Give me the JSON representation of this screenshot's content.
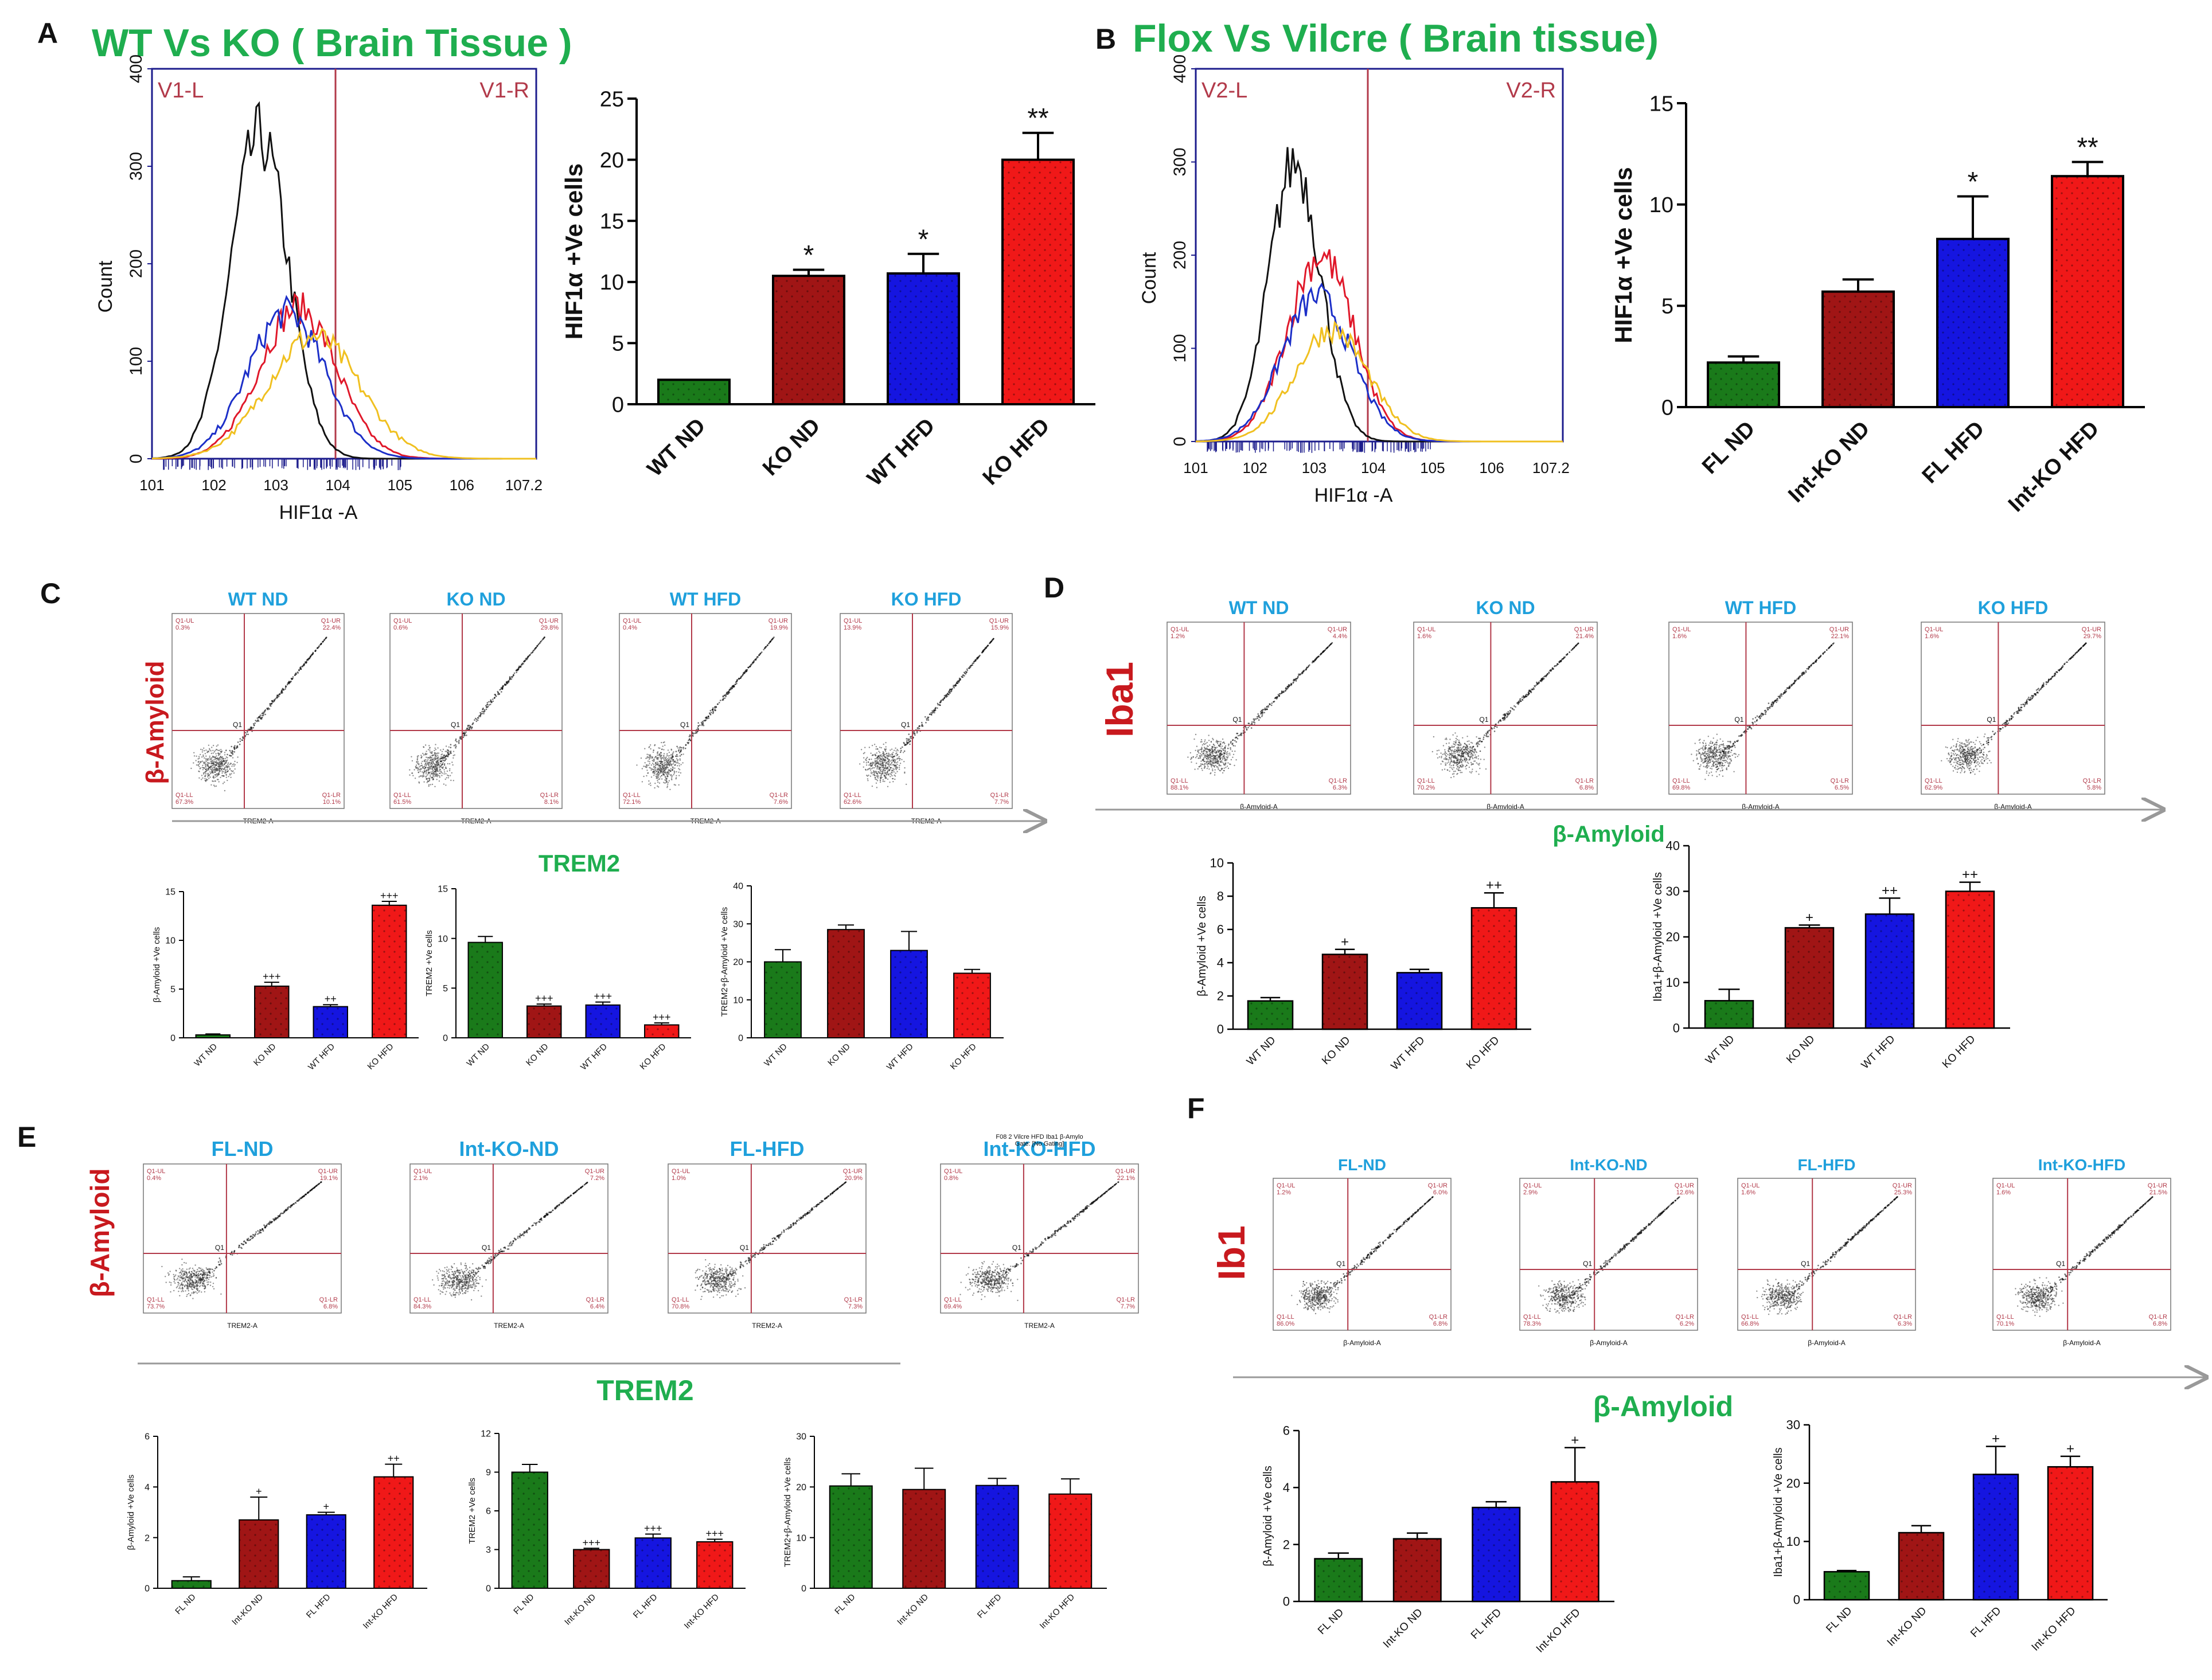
{
  "colors": {
    "green": "#1a7a1a",
    "darkred": "#a01515",
    "blue": "#1515e0",
    "red": "#f01818",
    "title_green": "#1fae4f",
    "label_red": "#c8191e",
    "flow_blue": "#1fa0dc",
    "text": "#111111",
    "axis_purple": "#1c1c8c",
    "flow_black": "#111111",
    "flow_red": "#e0182a",
    "flow_blue_line": "#1c2fc8",
    "flow_yellow": "#f0c020",
    "gate": "#b23a4a"
  },
  "panels": {
    "A": {
      "letter": "A",
      "title": "WT Vs KO ( Brain Tissue )",
      "histogram": {
        "gate_left": "V1-L",
        "gate_right": "V1-R",
        "xlabel": "HIF1α -A",
        "ylabel": "Count",
        "yticks": [
          "0",
          "100",
          "200",
          "300",
          "400"
        ],
        "xticks": [
          "10^1",
          "10^2",
          "10^3",
          "10^4",
          "10^5",
          "10^6",
          "10^7.2"
        ]
      }
    },
    "B": {
      "letter": "B",
      "title": "Flox Vs Vilcre ( Brain tissue)",
      "histogram": {
        "gate_left": "V2-L",
        "gate_right": "V2-R",
        "xlabel": "HIF1α -A",
        "ylabel": "Count",
        "yticks": [
          "0",
          "100",
          "200",
          "300",
          "400"
        ],
        "xticks": [
          "10^1",
          "10^2",
          "10^3",
          "10^4",
          "10^5",
          "10^6",
          "10^7.2"
        ]
      }
    },
    "C": {
      "letter": "C",
      "y_label": "β-Amyloid",
      "x_label": "TREM2",
      "dotplots": [
        {
          "title": "WT ND",
          "ul": "Q1-UL\n0.3%",
          "ur": "Q1-UR\n22.4%",
          "ll": "Q1-LL\n67.3%",
          "lr": "Q1-LR\n10.1%",
          "xaxis": "TREM2-A"
        },
        {
          "title": "KO ND",
          "ul": "Q1-UL\n0.6%",
          "ur": "Q1-UR\n29.8%",
          "ll": "Q1-LL\n61.5%",
          "lr": "Q1-LR\n8.1%",
          "xaxis": "TREM2-A"
        },
        {
          "title": "WT HFD",
          "ul": "Q1-UL\n0.4%",
          "ur": "Q1-UR\n19.9%",
          "ll": "Q1-LL\n72.1%",
          "lr": "Q1-LR\n7.6%",
          "xaxis": "TREM2-A"
        },
        {
          "title": "KO HFD",
          "ul": "Q1-UL\n13.9%",
          "ur": "Q1-UR\n15.9%",
          "ll": "Q1-LL\n62.6%",
          "lr": "Q1-LR\n7.7%",
          "xaxis": "TREM2-A"
        }
      ]
    },
    "D": {
      "letter": "D",
      "y_label": "Iba1",
      "x_label": "β-Amyloid",
      "dotplots": [
        {
          "title": "WT ND",
          "ul": "Q1-UL\n1.2%",
          "ur": "Q1-UR\n4.4%",
          "ll": "Q1-LL\n88.1%",
          "lr": "Q1-LR\n6.3%",
          "xaxis": "β-Amyloid-A"
        },
        {
          "title": "KO ND",
          "ul": "Q1-UL\n1.6%",
          "ur": "Q1-UR\n21.4%",
          "ll": "Q1-LL\n70.2%",
          "lr": "Q1-LR\n6.8%",
          "xaxis": "β-Amyloid-A"
        },
        {
          "title": "WT HFD",
          "ul": "Q1-UL\n1.6%",
          "ur": "Q1-UR\n22.1%",
          "ll": "Q1-LL\n69.8%",
          "lr": "Q1-LR\n6.5%",
          "xaxis": "β-Amyloid-A"
        },
        {
          "title": "KO HFD",
          "ul": "Q1-UL\n1.6%",
          "ur": "Q1-UR\n29.7%",
          "ll": "Q1-LL\n62.9%",
          "lr": "Q1-LR\n5.8%",
          "xaxis": "β-Amyloid-A"
        }
      ]
    },
    "E": {
      "letter": "E",
      "y_label": "β-Amyloid",
      "x_label": "TREM2",
      "dotplots": [
        {
          "title": "FL-ND",
          "ul": "Q1-UL\n0.4%",
          "ur": "Q1-UR\n19.1%",
          "ll": "Q1-LL\n73.7%",
          "lr": "Q1-LR\n6.8%",
          "xaxis": "TREM2-A",
          "header": ""
        },
        {
          "title": "Int-KO-ND",
          "ul": "Q1-UL\n2.1%",
          "ur": "Q1-UR\n7.2%",
          "ll": "Q1-LL\n84.3%",
          "lr": "Q1-LR\n6.4%",
          "xaxis": "TREM2-A",
          "header": ""
        },
        {
          "title": "FL-HFD",
          "ul": "Q1-UL\n1.0%",
          "ur": "Q1-UR\n20.9%",
          "ll": "Q1-LL\n70.8%",
          "lr": "Q1-LR\n7.3%",
          "xaxis": "TREM2-A",
          "header": ""
        },
        {
          "title": "Int-KO-HFD",
          "ul": "Q1-UL\n0.8%",
          "ur": "Q1-UR\n22.1%",
          "ll": "Q1-LL\n69.4%",
          "lr": "Q1-LR\n7.7%",
          "xaxis": "TREM2-A",
          "header": "F08 2 Vilcre HFD Iba1 β-Amylo\nGate: [No Gating]"
        }
      ]
    },
    "F": {
      "letter": "F",
      "y_label": "Ib1",
      "x_label": "β-Amyloid",
      "dotplots": [
        {
          "title": "FL-ND",
          "ul": "Q1-UL\n1.2%",
          "ur": "Q1-UR\n6.0%",
          "ll": "Q1-LL\n86.0%",
          "lr": "Q1-LR\n6.8%",
          "xaxis": "β-Amyloid-A"
        },
        {
          "title": "Int-KO-ND",
          "ul": "Q1-UL\n2.9%",
          "ur": "Q1-UR\n12.6%",
          "ll": "Q1-LL\n78.3%",
          "lr": "Q1-LR\n6.2%",
          "xaxis": "β-Amyloid-A"
        },
        {
          "title": "FL-HFD",
          "ul": "Q1-UL\n1.6%",
          "ur": "Q1-UR\n25.3%",
          "ll": "Q1-LL\n66.8%",
          "lr": "Q1-LR\n6.3%",
          "xaxis": "β-Amyloid-A"
        },
        {
          "title": "Int-KO-HFD",
          "ul": "Q1-UL\n1.6%",
          "ur": "Q1-UR\n21.5%",
          "ll": "Q1-LL\n70.1%",
          "lr": "Q1-LR\n6.8%",
          "xaxis": "β-Amyloid-A"
        }
      ]
    }
  },
  "chart_data": [
    {
      "id": "A-bar",
      "type": "bar",
      "title": "",
      "xlabel": "",
      "ylabel": "HIF1α +Ve cells",
      "ylim": [
        0,
        25
      ],
      "yticks": [
        0,
        5,
        10,
        15,
        20,
        25
      ],
      "categories": [
        "WT ND",
        "KO ND",
        "WT HFD",
        "KO HFD"
      ],
      "values": [
        2,
        10.5,
        10.7,
        20
      ],
      "errors": [
        0,
        0.5,
        1.6,
        2.2
      ],
      "significance": [
        "",
        "*",
        "*",
        "**"
      ]
    },
    {
      "id": "B-bar",
      "type": "bar",
      "title": "",
      "xlabel": "",
      "ylabel": "HIF1α +Ve cells",
      "ylim": [
        0,
        15
      ],
      "yticks": [
        0,
        5,
        10,
        15
      ],
      "categories": [
        "FL ND",
        "Int-KO ND",
        "FL HFD",
        "Int-KO HFD"
      ],
      "values": [
        2.2,
        5.7,
        8.3,
        11.4
      ],
      "errors": [
        0.3,
        0.6,
        2.1,
        0.7
      ],
      "significance": [
        "",
        "",
        "*",
        "**"
      ]
    },
    {
      "id": "C-bar1",
      "type": "bar",
      "ylabel": "β-Amyloid +Ve cells",
      "ylim": [
        0,
        15
      ],
      "yticks": [
        0,
        5,
        10,
        15
      ],
      "categories": [
        "WT ND",
        "KO ND",
        "WT HFD",
        "KO HFD"
      ],
      "values": [
        0.3,
        5.3,
        3.2,
        13.6
      ],
      "errors": [
        0.1,
        0.4,
        0.2,
        0.4
      ],
      "significance": [
        "",
        "+++",
        "++",
        "+++"
      ]
    },
    {
      "id": "C-bar2",
      "type": "bar",
      "ylabel": "TREM2 +Ve cells",
      "ylim": [
        0,
        15
      ],
      "yticks": [
        0,
        5,
        10,
        15
      ],
      "categories": [
        "WT ND",
        "KO ND",
        "WT HFD",
        "KO HFD"
      ],
      "values": [
        9.6,
        3.2,
        3.3,
        1.3
      ],
      "errors": [
        0.6,
        0.2,
        0.3,
        0.2
      ],
      "significance": [
        "",
        "+++",
        "+++",
        "+++"
      ]
    },
    {
      "id": "C-bar3",
      "type": "bar",
      "ylabel": "TREM2+β-Amyloid +Ve cells",
      "ylim": [
        0,
        40
      ],
      "yticks": [
        0,
        10,
        20,
        30,
        40
      ],
      "categories": [
        "WT ND",
        "KO ND",
        "WT HFD",
        "KO HFD"
      ],
      "values": [
        20,
        28.5,
        23,
        17
      ],
      "errors": [
        3.2,
        1.2,
        5,
        1
      ],
      "significance": [
        "",
        "",
        "",
        ""
      ]
    },
    {
      "id": "D-bar1",
      "type": "bar",
      "ylabel": "β-Amyloid +Ve cells",
      "ylim": [
        0,
        10
      ],
      "yticks": [
        0,
        2,
        4,
        6,
        8,
        10
      ],
      "categories": [
        "WT ND",
        "KO ND",
        "WT HFD",
        "KO HFD"
      ],
      "values": [
        1.7,
        4.5,
        3.4,
        7.3
      ],
      "errors": [
        0.2,
        0.3,
        0.2,
        0.9
      ],
      "significance": [
        "",
        "+",
        "",
        "++"
      ]
    },
    {
      "id": "D-bar2",
      "type": "bar",
      "ylabel": "Iba1+β-Amyloid +Ve cells",
      "ylim": [
        0,
        40
      ],
      "yticks": [
        0,
        10,
        20,
        30,
        40
      ],
      "categories": [
        "WT ND",
        "KO ND",
        "WT HFD",
        "KO HFD"
      ],
      "values": [
        6,
        22,
        25,
        30
      ],
      "errors": [
        2.5,
        0.6,
        3.5,
        2
      ],
      "significance": [
        "",
        "+",
        "++",
        "++"
      ]
    },
    {
      "id": "E-bar1",
      "type": "bar",
      "ylabel": "β-Amyloid +Ve cells",
      "ylim": [
        0,
        6
      ],
      "yticks": [
        0,
        2,
        4,
        6
      ],
      "categories": [
        "FL ND",
        "Int-KO ND",
        "FL HFD",
        "Int-KO HFD"
      ],
      "values": [
        0.3,
        2.7,
        2.9,
        4.4
      ],
      "errors": [
        0.15,
        0.9,
        0.1,
        0.5
      ],
      "significance": [
        "",
        "+",
        "+",
        "++"
      ]
    },
    {
      "id": "E-bar2",
      "type": "bar",
      "ylabel": "TREM2 +Ve cells",
      "ylim": [
        0,
        12
      ],
      "yticks": [
        0,
        3,
        6,
        9,
        12
      ],
      "categories": [
        "FL ND",
        "Int-KO ND",
        "FL HFD",
        "Int-KO HFD"
      ],
      "values": [
        9,
        3,
        3.9,
        3.6
      ],
      "errors": [
        0.6,
        0.1,
        0.3,
        0.2
      ],
      "significance": [
        "",
        "+++",
        "+++",
        "+++"
      ]
    },
    {
      "id": "E-bar3",
      "type": "bar",
      "ylabel": "TREM2+β-Amyloid +Ve cells",
      "ylim": [
        0,
        30
      ],
      "yticks": [
        0,
        10,
        20,
        30
      ],
      "categories": [
        "FL ND",
        "Int-KO ND",
        "FL HFD",
        "Int-KO HFD"
      ],
      "values": [
        20.2,
        19.5,
        20.3,
        18.6
      ],
      "errors": [
        2.4,
        4.2,
        1.4,
        3
      ],
      "significance": [
        "",
        "",
        "",
        ""
      ]
    },
    {
      "id": "F-bar1",
      "type": "bar",
      "ylabel": "β-Amyloid +Ve cells",
      "ylim": [
        0,
        6
      ],
      "yticks": [
        0,
        2,
        4,
        6
      ],
      "categories": [
        "FL ND",
        "Int-KO ND",
        "FL HFD",
        "Int-KO HFD"
      ],
      "values": [
        1.5,
        2.2,
        3.3,
        4.2
      ],
      "errors": [
        0.2,
        0.2,
        0.2,
        1.2
      ],
      "significance": [
        "",
        "",
        "",
        "+"
      ]
    },
    {
      "id": "F-bar2",
      "type": "bar",
      "ylabel": "Iba1+β-Amyloid +Ve cells",
      "ylim": [
        0,
        30
      ],
      "yticks": [
        0,
        10,
        20,
        30
      ],
      "categories": [
        "FL ND",
        "Int-KO ND",
        "FL HFD",
        "Int-KO HFD"
      ],
      "values": [
        4.8,
        11.5,
        21.5,
        22.8
      ],
      "errors": [
        0.2,
        1.2,
        4.8,
        1.8
      ],
      "significance": [
        "",
        "",
        "+",
        "+"
      ]
    }
  ]
}
